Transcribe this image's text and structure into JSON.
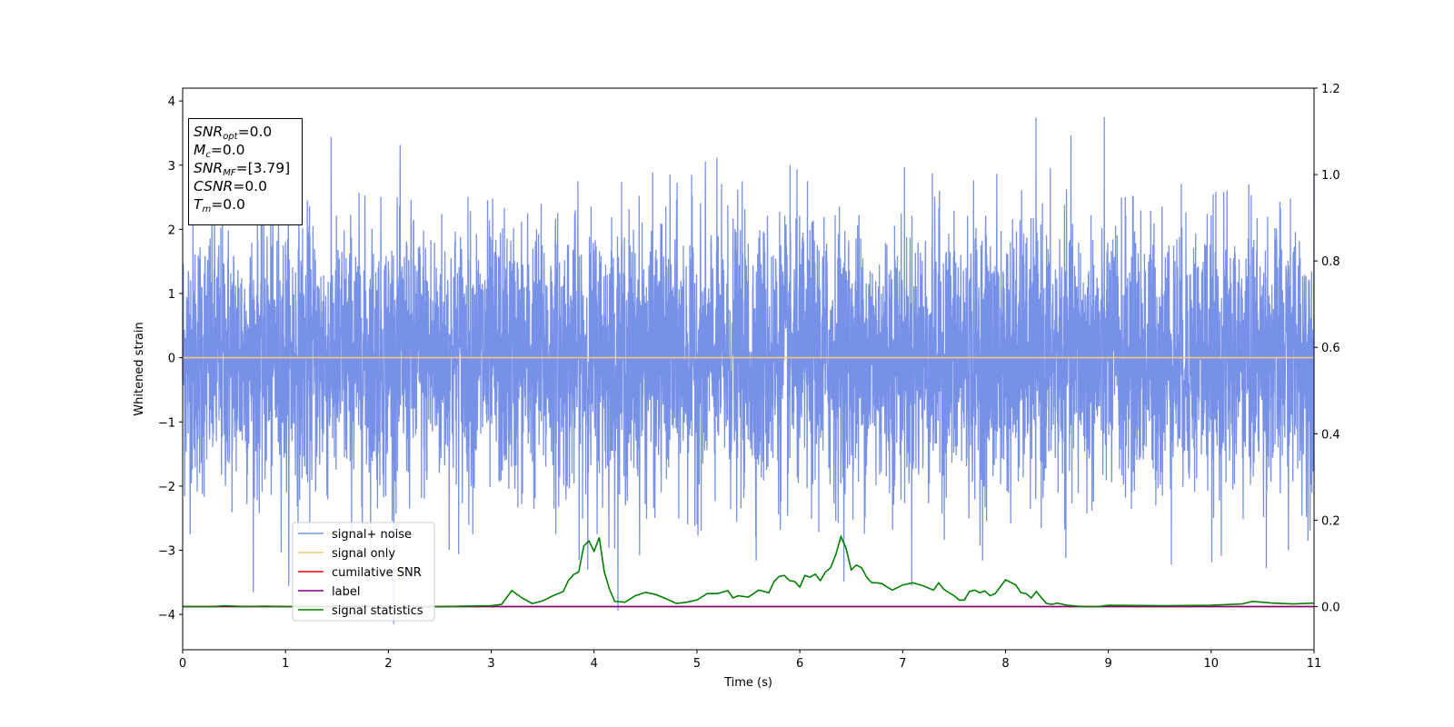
{
  "chart_data": {
    "type": "line",
    "xlabel": "Time (s)",
    "ylabel": "Whitened strain",
    "xlim": [
      0,
      11
    ],
    "ylim": [
      -4.55,
      4.2
    ],
    "ylim_right": [
      -0.1,
      1.2
    ],
    "x_ticks": [
      "0",
      "1",
      "2",
      "3",
      "4",
      "5",
      "6",
      "7",
      "8",
      "9",
      "10",
      "11"
    ],
    "y_ticks_left": [
      "−4",
      "−3",
      "−2",
      "−1",
      "0",
      "1",
      "2",
      "3",
      "4"
    ],
    "y_ticks_right": [
      "0.0",
      "0.2",
      "0.4",
      "0.6",
      "0.8",
      "1.0",
      "1.2"
    ],
    "legend_position": "lower-left",
    "series": [
      {
        "name": "signal+ noise",
        "color": "#7891e8",
        "axis": "left",
        "description_values": {
          "amplitude_range": [
            -4.15,
            3.75
          ],
          "typical_range": [
            -2.0,
            2.2
          ]
        }
      },
      {
        "name": "signal only",
        "color": "#f4c77a",
        "axis": "left",
        "x": [
          0,
          11
        ],
        "values": [
          0,
          0
        ]
      },
      {
        "name": "cumilative SNR",
        "color": "#ff0000",
        "axis": "right",
        "x": [
          0,
          11
        ],
        "values": [
          0,
          0
        ]
      },
      {
        "name": "label",
        "color": "#800080",
        "axis": "right",
        "x": [
          0,
          11
        ],
        "values": [
          0,
          0
        ]
      },
      {
        "name": "signal statistics",
        "color": "#008000",
        "axis": "right",
        "x": [
          0,
          0.3,
          0.4,
          0.6,
          0.8,
          1.0,
          1.5,
          2.0,
          2.5,
          3.0,
          3.1,
          3.2,
          3.3,
          3.4,
          3.5,
          3.6,
          3.7,
          3.75,
          3.8,
          3.85,
          3.9,
          3.95,
          4.0,
          4.05,
          4.1,
          4.15,
          4.2,
          4.3,
          4.4,
          4.5,
          4.6,
          4.7,
          4.8,
          4.9,
          5.0,
          5.1,
          5.2,
          5.3,
          5.35,
          5.4,
          5.5,
          5.55,
          5.6,
          5.7,
          5.75,
          5.8,
          5.85,
          5.9,
          5.95,
          6.0,
          6.05,
          6.1,
          6.15,
          6.2,
          6.25,
          6.3,
          6.35,
          6.4,
          6.45,
          6.5,
          6.55,
          6.6,
          6.65,
          6.7,
          6.75,
          6.8,
          6.85,
          6.9,
          7.0,
          7.1,
          7.2,
          7.3,
          7.35,
          7.4,
          7.5,
          7.55,
          7.6,
          7.65,
          7.7,
          7.75,
          7.8,
          7.85,
          7.9,
          8.0,
          8.1,
          8.15,
          8.2,
          8.25,
          8.3,
          8.35,
          8.4,
          8.45,
          8.5,
          8.6,
          8.7,
          8.8,
          8.9,
          9.0,
          9.5,
          10.0,
          10.3,
          10.4,
          10.5,
          10.6,
          10.8,
          11.0
        ],
        "values": [
          0.0,
          0.0,
          0.002,
          0.0,
          0.001,
          0.0,
          0.0,
          0.0,
          0.0,
          0.002,
          0.005,
          0.037,
          0.02,
          0.007,
          0.013,
          0.025,
          0.035,
          0.06,
          0.074,
          0.08,
          0.14,
          0.152,
          0.128,
          0.16,
          0.08,
          0.04,
          0.012,
          0.01,
          0.025,
          0.033,
          0.028,
          0.018,
          0.007,
          0.01,
          0.015,
          0.03,
          0.03,
          0.037,
          0.02,
          0.025,
          0.022,
          0.03,
          0.038,
          0.032,
          0.058,
          0.07,
          0.072,
          0.06,
          0.058,
          0.045,
          0.072,
          0.068,
          0.075,
          0.06,
          0.08,
          0.09,
          0.12,
          0.162,
          0.135,
          0.085,
          0.096,
          0.09,
          0.068,
          0.055,
          0.055,
          0.053,
          0.045,
          0.038,
          0.05,
          0.055,
          0.048,
          0.038,
          0.055,
          0.04,
          0.025,
          0.015,
          0.015,
          0.035,
          0.038,
          0.032,
          0.036,
          0.025,
          0.03,
          0.062,
          0.05,
          0.032,
          0.03,
          0.02,
          0.035,
          0.02,
          0.007,
          0.005,
          0.008,
          0.003,
          0.001,
          0.0,
          0.0,
          0.003,
          0.002,
          0.003,
          0.006,
          0.012,
          0.01,
          0.008,
          0.006,
          0.008
        ]
      }
    ]
  },
  "info_box": {
    "snr_opt_label": "SNR",
    "snr_opt_sub": "opt",
    "snr_opt_value": "=0.0",
    "mc_label": "M",
    "mc_sub": "c",
    "mc_value": "=0.0",
    "snr_mf_label": "SNR",
    "snr_mf_sub": "MF",
    "snr_mf_value": "=[3.79]",
    "csnr_label": "CSNR",
    "csnr_value": "=0.0",
    "tm_label": "T",
    "tm_sub": "m",
    "tm_value": "=0.0"
  }
}
